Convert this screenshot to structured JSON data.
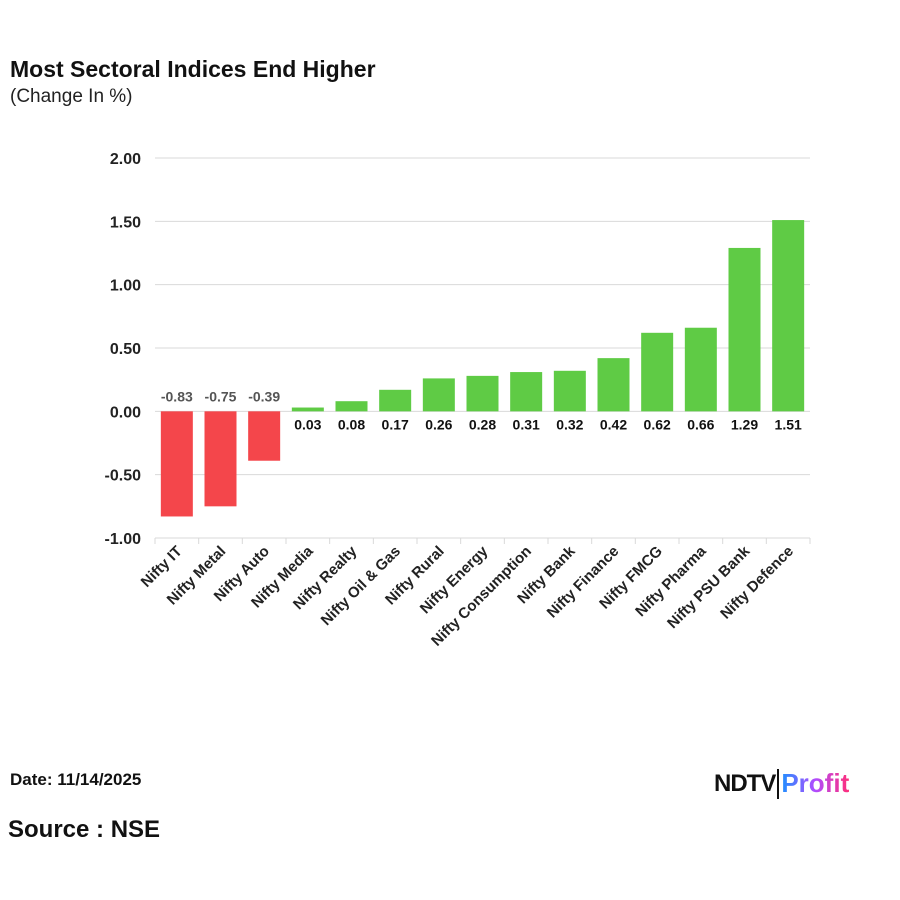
{
  "header": {
    "title": "Most Sectoral Indices End Higher",
    "subtitle": "(Change In %)"
  },
  "footer": {
    "date": "Date: 11/14/2025",
    "source": "Source : NSE",
    "logo": "NDTV Profit",
    "logo_parts": [
      "NDTV",
      "Profit"
    ]
  },
  "colors": {
    "negative": "#f4464b",
    "positive": "#5fcb45",
    "grid": "#d9d9d9"
  },
  "chart_data": {
    "type": "bar",
    "title": "Most Sectoral Indices End Higher",
    "subtitle": "(Change In %)",
    "categories": [
      "Nifty IT",
      "Nifty Metal",
      "Nifty Auto",
      "Nifty Media",
      "Nifty Realty",
      "Nifty Oil & Gas",
      "Nifty Rural",
      "Nifty Energy",
      "Nifty Consumption",
      "Nifty Bank",
      "Nifty Finance",
      "Nifty FMCG",
      "Nifty Pharma",
      "Nifty PSU Bank",
      "Nifty Defence"
    ],
    "values": [
      -0.83,
      -0.75,
      -0.39,
      0.03,
      0.08,
      0.17,
      0.26,
      0.28,
      0.31,
      0.32,
      0.42,
      0.62,
      0.66,
      1.29,
      1.51
    ],
    "ylim": [
      -1.0,
      2.0
    ],
    "yticks": [
      "2.00",
      "1.50",
      "1.00",
      "0.50",
      "0.00",
      "-0.50",
      "-1.00"
    ],
    "grid": true,
    "legend": "none"
  }
}
